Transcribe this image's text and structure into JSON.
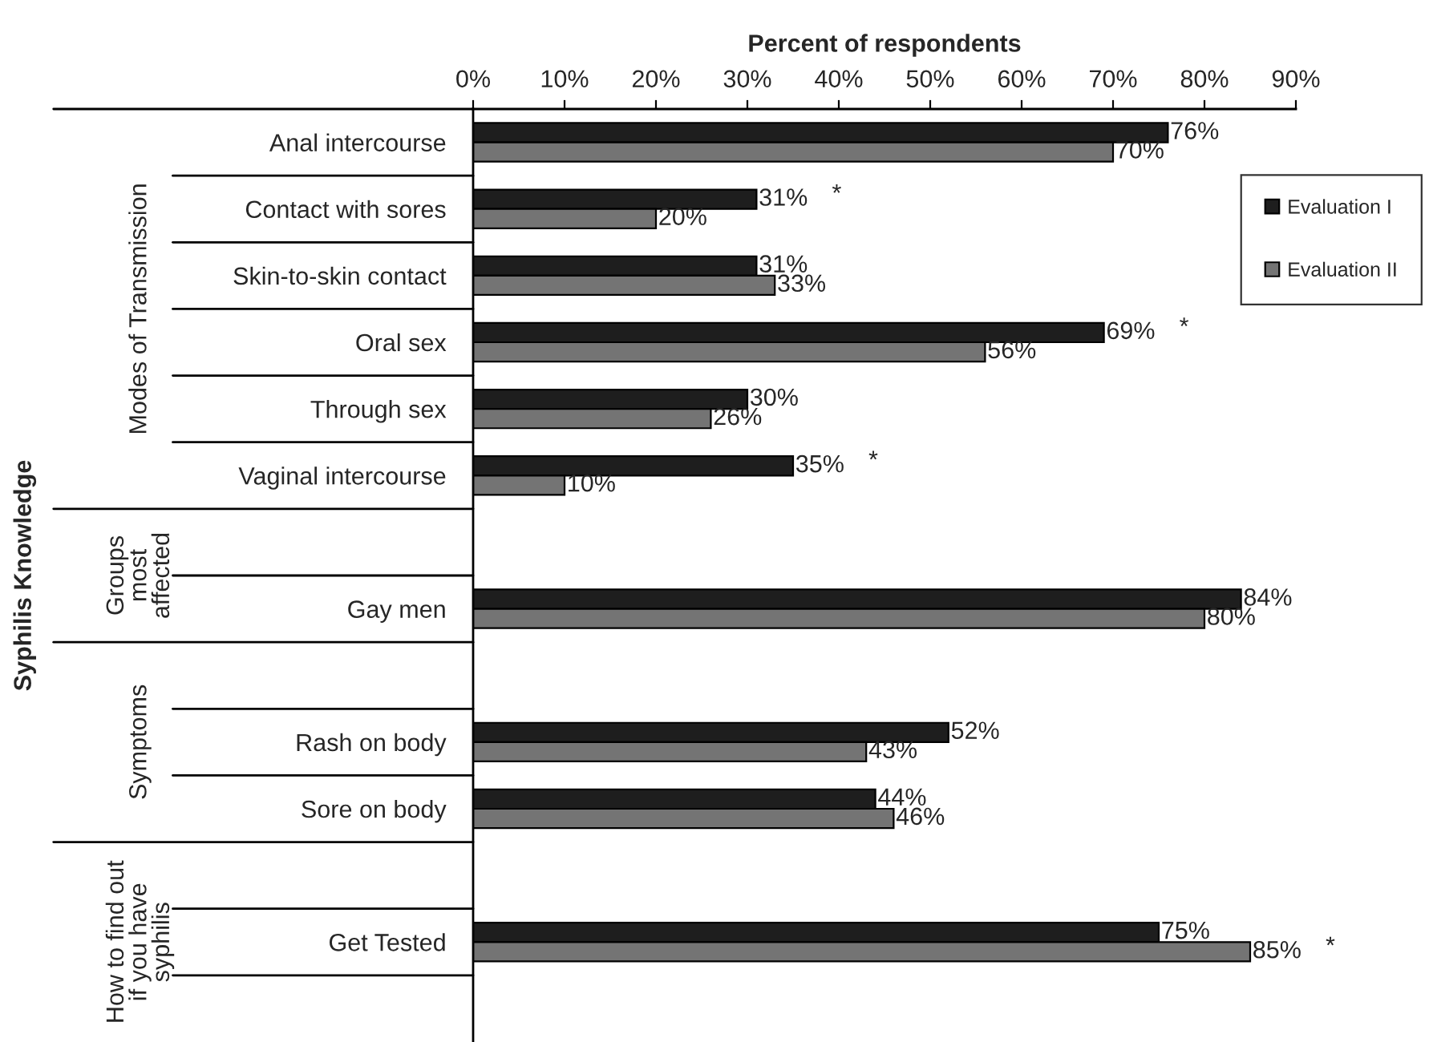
{
  "chart_data": {
    "type": "bar",
    "orientation": "horizontal",
    "xlabel": "Percent of respondents",
    "categories": [
      "Anal intercourse",
      "Contact with sores",
      "Skin-to-skin contact",
      "Oral sex",
      "Through sex",
      "Vaginal intercourse",
      null,
      "Gay men",
      null,
      "Rash on body",
      "Sore on body",
      null,
      "Get Tested",
      null
    ],
    "series": [
      {
        "name": "Evaluation I",
        "color": "#1e1e1e",
        "values": [
          76,
          31,
          31,
          69,
          30,
          35,
          null,
          84,
          null,
          52,
          44,
          null,
          75,
          null
        ],
        "value_labels": [
          "76%",
          "31%",
          "31%",
          "69%",
          "30%",
          "35%",
          null,
          "84%",
          null,
          "52%",
          "44%",
          null,
          "75%",
          null
        ]
      },
      {
        "name": "Evaluation II",
        "color": "#747474",
        "values": [
          70,
          20,
          33,
          56,
          26,
          10,
          null,
          80,
          null,
          43,
          46,
          null,
          85,
          null
        ],
        "value_labels": [
          "70%",
          "20%",
          "33%",
          "56%",
          "26%",
          "10%",
          null,
          "80%",
          null,
          "43%",
          "46%",
          null,
          "85%",
          null
        ]
      }
    ],
    "xlim": [
      0,
      90
    ],
    "xticks": [
      {
        "value": 0,
        "label": "0%"
      },
      {
        "value": 10,
        "label": "10%"
      },
      {
        "value": 20,
        "label": "20%"
      },
      {
        "value": 30,
        "label": "30%"
      },
      {
        "value": 40,
        "label": "40%"
      },
      {
        "value": 50,
        "label": "50%"
      },
      {
        "value": 60,
        "label": "60%"
      },
      {
        "value": 70,
        "label": "70%"
      },
      {
        "value": 80,
        "label": "80%"
      },
      {
        "value": 90,
        "label": "90%"
      }
    ],
    "annotations": [
      "Modes of Transmission",
      "Groups\nmost\naffected",
      "Symptoms",
      "How to find out\nif you have\nsyphilis",
      "Syphilis Knowledge",
      "*",
      "*",
      "*",
      "*"
    ],
    "grid": false,
    "legend": "top right"
  }
}
